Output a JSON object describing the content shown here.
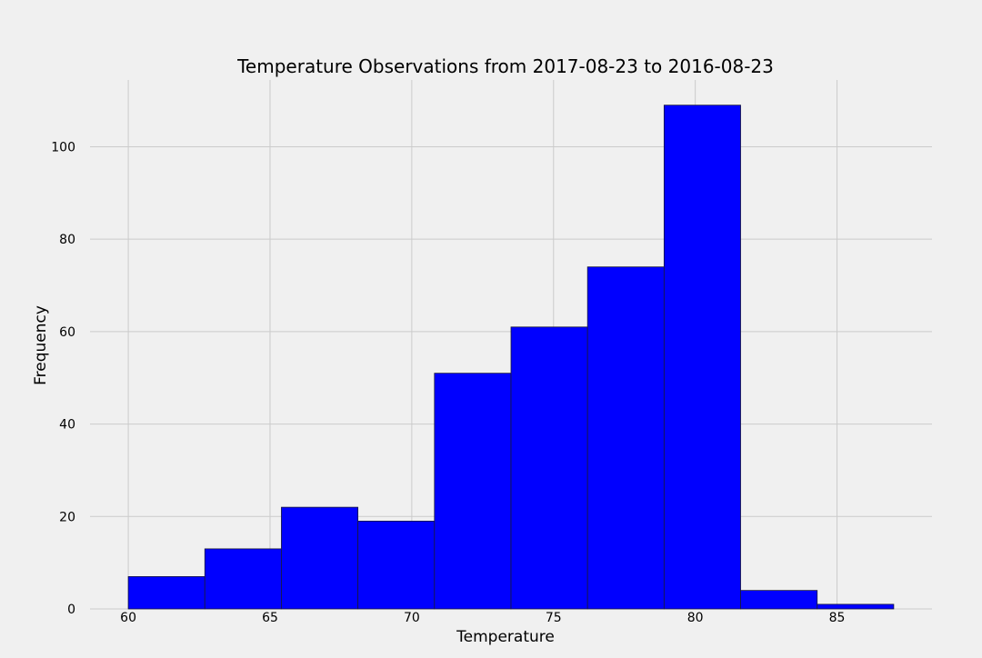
{
  "chart_data": {
    "type": "bar",
    "title": "Temperature Observations from 2017-08-23 to 2016-08-23",
    "xlabel": "Temperature",
    "ylabel": "Frequency",
    "bins": [
      {
        "start": 60.0,
        "end": 62.7,
        "count": 7
      },
      {
        "start": 62.7,
        "end": 65.4,
        "count": 13
      },
      {
        "start": 65.4,
        "end": 68.1,
        "count": 22
      },
      {
        "start": 68.1,
        "end": 70.8,
        "count": 19
      },
      {
        "start": 70.8,
        "end": 73.5,
        "count": 51
      },
      {
        "start": 73.5,
        "end": 76.2,
        "count": 61
      },
      {
        "start": 76.2,
        "end": 78.9,
        "count": 74
      },
      {
        "start": 78.9,
        "end": 81.6,
        "count": 109
      },
      {
        "start": 81.6,
        "end": 84.3,
        "count": 4
      },
      {
        "start": 84.3,
        "end": 87.0,
        "count": 1
      }
    ],
    "xlim": [
      58.65,
      88.35
    ],
    "ylim": [
      0,
      114.45
    ],
    "xticks": [
      60,
      65,
      70,
      75,
      80,
      85
    ],
    "yticks": [
      0,
      20,
      40,
      60,
      80,
      100
    ],
    "grid": true,
    "colors": {
      "bar_fill": "#0000ff",
      "bar_edge": "#1a1a3a",
      "grid": "#cbcbcb",
      "background": "#f0f0f0"
    }
  }
}
